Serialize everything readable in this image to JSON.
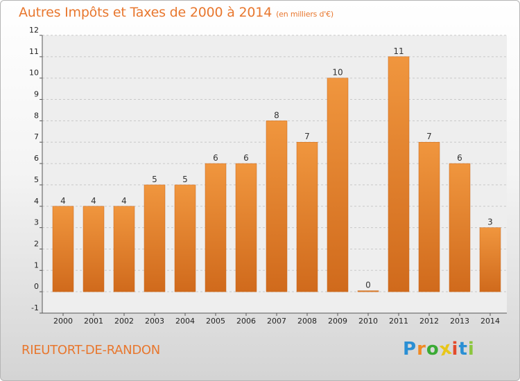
{
  "chart_data": {
    "type": "bar",
    "title": "Autres Impôts et Taxes de 2000 à 2014",
    "unit": "(en milliers d'€)",
    "categories": [
      "2000",
      "2001",
      "2002",
      "2003",
      "2004",
      "2005",
      "2006",
      "2007",
      "2008",
      "2009",
      "2010",
      "2011",
      "2012",
      "2013",
      "2014"
    ],
    "values": [
      4,
      4,
      4,
      5,
      5,
      6,
      6,
      8,
      7,
      10,
      0,
      11,
      7,
      6,
      3
    ],
    "ylim": [
      -1,
      12
    ],
    "yticks": [
      "-1",
      "0",
      "1",
      "2",
      "3",
      "4",
      "5",
      "6",
      "7",
      "8",
      "9",
      "10",
      "11",
      "12"
    ],
    "grid": true,
    "bar_color": "#f0963e",
    "bar_color_dark": "#d06a1c"
  },
  "footer": {
    "town": "RIEUTORT-DE-RANDON",
    "logo": [
      "P",
      "r",
      "o",
      "x",
      "i",
      "t",
      "i"
    ]
  },
  "logo_colors": [
    "#2a8fd4",
    "#f08a24",
    "#3aaa35",
    "#e8c619",
    "#e34a2b",
    "#2a8fd4",
    "#8cc63f"
  ]
}
